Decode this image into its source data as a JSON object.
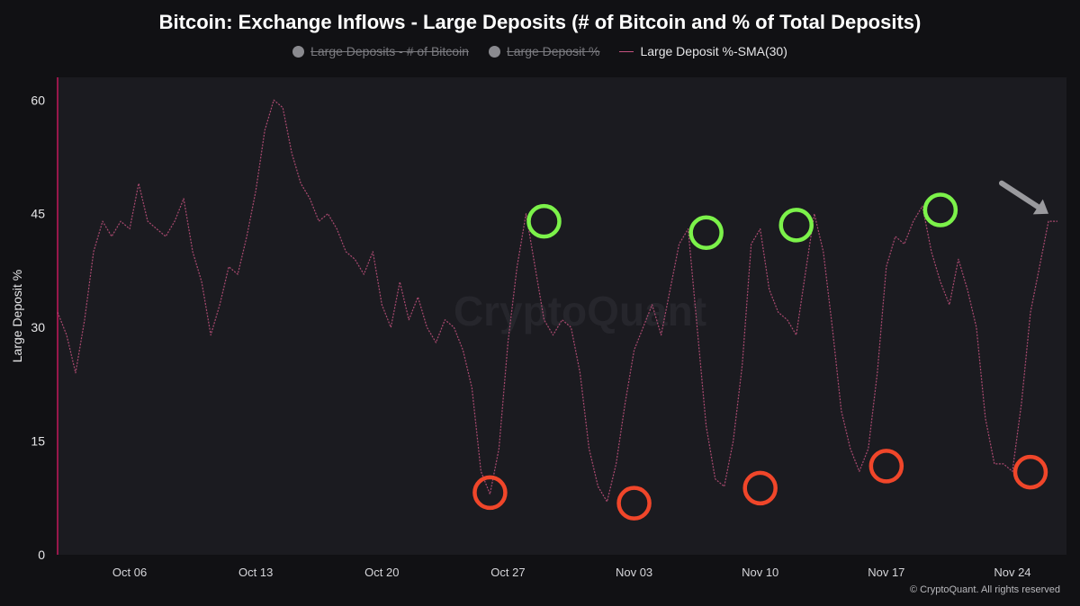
{
  "chart_data": {
    "type": "line",
    "title": "Bitcoin: Exchange Inflows - Large Deposits (# of Bitcoin and % of Total Deposits)",
    "legend": [
      {
        "name": "Large Deposits - # of Bitcoin",
        "visible": false,
        "color": "#8a8a8f"
      },
      {
        "name": "Large Deposit %",
        "visible": false,
        "color": "#8a8a8f"
      },
      {
        "name": "Large Deposit %-SMA(30)",
        "visible": true,
        "color": "#c4527f"
      }
    ],
    "legend_position": "top-center",
    "ylabel": "Large Deposit %",
    "ylim": [
      0,
      63
    ],
    "yticks": [
      "0",
      "15",
      "30",
      "45",
      "60"
    ],
    "xticks": [
      "Oct 06",
      "Oct 13",
      "Oct 20",
      "Oct 27",
      "Nov 03",
      "Nov 10",
      "Nov 17",
      "Nov 24"
    ],
    "x_start": "2024-10-02",
    "x_end": "2024-11-27",
    "grid": false,
    "series": [
      {
        "name": "Large Deposit %-SMA(30)",
        "x": [
          "2024-10-02",
          "2024-10-02 12:00",
          "2024-10-03",
          "2024-10-03 12:00",
          "2024-10-04",
          "2024-10-04 12:00",
          "2024-10-05",
          "2024-10-05 12:00",
          "2024-10-06",
          "2024-10-06 12:00",
          "2024-10-07",
          "2024-10-07 12:00",
          "2024-10-08",
          "2024-10-08 12:00",
          "2024-10-09",
          "2024-10-09 12:00",
          "2024-10-10",
          "2024-10-10 12:00",
          "2024-10-11",
          "2024-10-11 12:00",
          "2024-10-12",
          "2024-10-12 12:00",
          "2024-10-13",
          "2024-10-13 12:00",
          "2024-10-14",
          "2024-10-14 12:00",
          "2024-10-15",
          "2024-10-15 12:00",
          "2024-10-16",
          "2024-10-16 12:00",
          "2024-10-17",
          "2024-10-17 12:00",
          "2024-10-18",
          "2024-10-18 12:00",
          "2024-10-19",
          "2024-10-19 12:00",
          "2024-10-20",
          "2024-10-20 12:00",
          "2024-10-21",
          "2024-10-21 12:00",
          "2024-10-22",
          "2024-10-22 12:00",
          "2024-10-23",
          "2024-10-23 12:00",
          "2024-10-24",
          "2024-10-24 12:00",
          "2024-10-25",
          "2024-10-25 12:00",
          "2024-10-26",
          "2024-10-26 12:00",
          "2024-10-27",
          "2024-10-27 12:00",
          "2024-10-28",
          "2024-10-28 12:00",
          "2024-10-29",
          "2024-10-29 12:00",
          "2024-10-30",
          "2024-10-30 12:00",
          "2024-10-31",
          "2024-10-31 12:00",
          "2024-11-01",
          "2024-11-01 12:00",
          "2024-11-02",
          "2024-11-02 12:00",
          "2024-11-03",
          "2024-11-03 12:00",
          "2024-11-04",
          "2024-11-04 12:00",
          "2024-11-05",
          "2024-11-05 12:00",
          "2024-11-06",
          "2024-11-06 12:00",
          "2024-11-07",
          "2024-11-07 12:00",
          "2024-11-08",
          "2024-11-08 12:00",
          "2024-11-09",
          "2024-11-09 12:00",
          "2024-11-10",
          "2024-11-10 12:00",
          "2024-11-11",
          "2024-11-11 12:00",
          "2024-11-12",
          "2024-11-12 12:00",
          "2024-11-13",
          "2024-11-13 12:00",
          "2024-11-14",
          "2024-11-14 12:00",
          "2024-11-15",
          "2024-11-15 12:00",
          "2024-11-16",
          "2024-11-16 12:00",
          "2024-11-17",
          "2024-11-17 12:00",
          "2024-11-18",
          "2024-11-18 12:00",
          "2024-11-19",
          "2024-11-19 12:00",
          "2024-11-20",
          "2024-11-20 12:00",
          "2024-11-21",
          "2024-11-21 12:00",
          "2024-11-22",
          "2024-11-22 12:00",
          "2024-11-23",
          "2024-11-23 12:00",
          "2024-11-24",
          "2024-11-24 12:00",
          "2024-11-25",
          "2024-11-25 12:00",
          "2024-11-26",
          "2024-11-26 12:00"
        ],
        "values": [
          32,
          29,
          24,
          31,
          40,
          44,
          42,
          44,
          43,
          49,
          44,
          43,
          42,
          44,
          47,
          40,
          36,
          29,
          33,
          38,
          37,
          42,
          48,
          56,
          60,
          59,
          53,
          49,
          47,
          44,
          45,
          43,
          40,
          39,
          37,
          40,
          33,
          30,
          36,
          31,
          34,
          30,
          28,
          31,
          30,
          27,
          22,
          11,
          8,
          14,
          28,
          38,
          45,
          38,
          31,
          29,
          31,
          30,
          24,
          14,
          9,
          7,
          12,
          20,
          27,
          30,
          33,
          29,
          35,
          41,
          43,
          30,
          17,
          10,
          9,
          15,
          25,
          41,
          43,
          35,
          32,
          31,
          29,
          37,
          45,
          40,
          30,
          19,
          14,
          11,
          14,
          24,
          38,
          42,
          41,
          44,
          46,
          40,
          36,
          33,
          39,
          35,
          30,
          18,
          12,
          12,
          11,
          20,
          32,
          38,
          44,
          44
        ]
      }
    ],
    "annotations": {
      "green_circles": [
        {
          "x": "2024-10-29",
          "y": 44
        },
        {
          "x": "2024-11-07",
          "y": 42.5
        },
        {
          "x": "2024-11-12",
          "y": 43.5
        },
        {
          "x": "2024-11-20",
          "y": 45.5
        }
      ],
      "red_circles": [
        {
          "x": "2024-10-26",
          "y": 8.2
        },
        {
          "x": "2024-11-03",
          "y": 6.8
        },
        {
          "x": "2024-11-10",
          "y": 8.8
        },
        {
          "x": "2024-11-17",
          "y": 11.7
        },
        {
          "x": "2024-11-25",
          "y": 10.9
        }
      ],
      "arrow": {
        "target": "2024-11-26",
        "y": 45,
        "color": "#9a9a9e"
      }
    },
    "colors": {
      "background": "#111114",
      "plot_bg": "#1b1b20",
      "line": "#c4527f",
      "green": "#7cf24a",
      "red": "#f0462a",
      "axis_line": "#c2185b"
    }
  },
  "watermark": "CryptoQuant",
  "copyright": "© CryptoQuant. All rights reserved"
}
